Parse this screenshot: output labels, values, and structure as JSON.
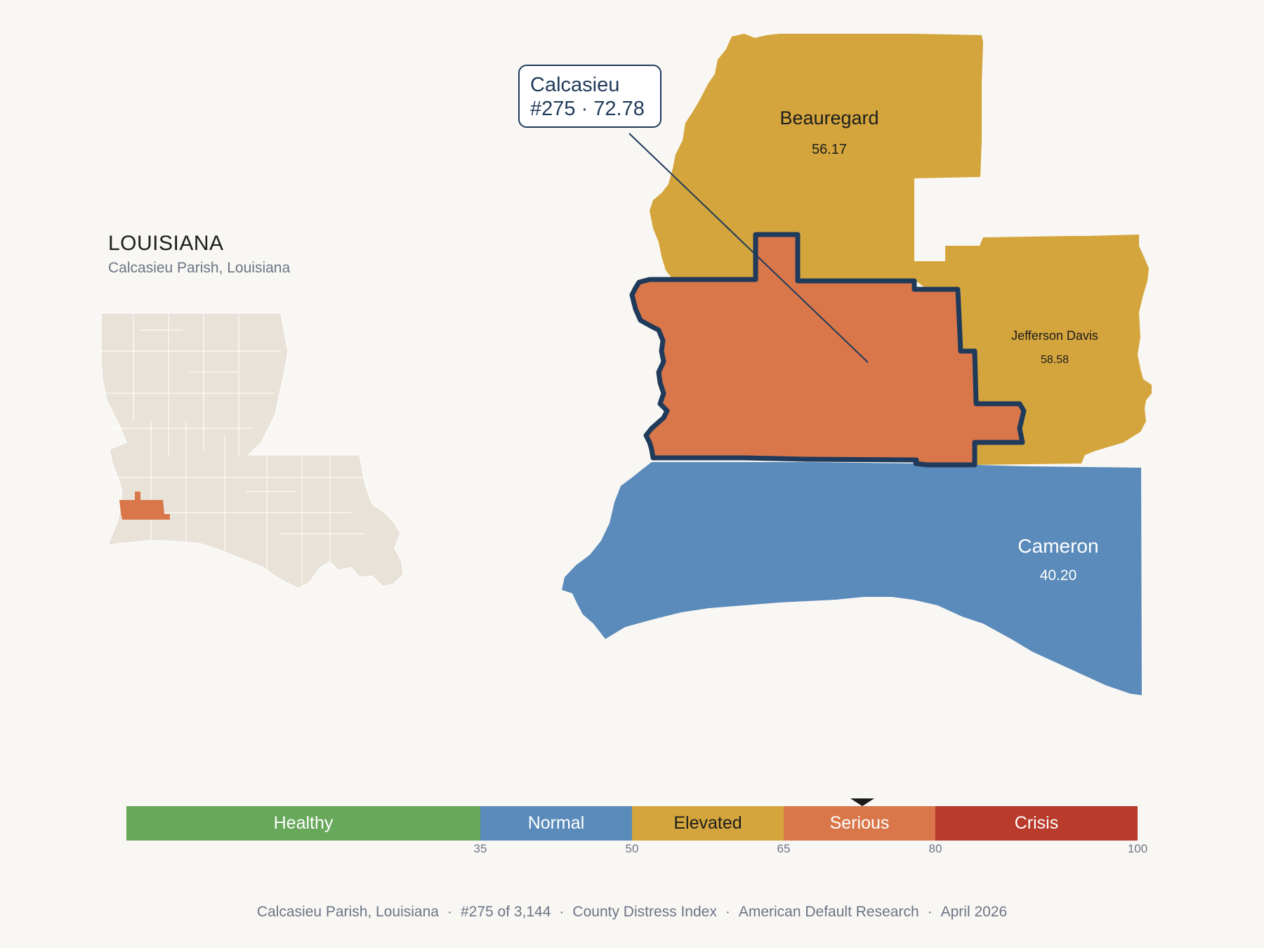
{
  "header": {
    "state_title": "LOUISIANA",
    "subtitle": "Calcasieu Parish, Louisiana"
  },
  "callout": {
    "name": "Calcasieu",
    "rank_score": "#275 · 72.78"
  },
  "parishes": [
    {
      "name": "Calcasieu",
      "score": "72.78",
      "category": "Serious",
      "selected": true
    },
    {
      "name": "Beauregard",
      "score": "56.17",
      "category": "Elevated"
    },
    {
      "name": "Jefferson Davis",
      "score": "58.58",
      "category": "Elevated"
    },
    {
      "name": "Cameron",
      "score": "40.20",
      "category": "Normal"
    }
  ],
  "legend": {
    "segments": [
      {
        "label": "Healthy",
        "from": 0,
        "to": 35,
        "color": "#67a85a"
      },
      {
        "label": "Normal",
        "from": 35,
        "to": 50,
        "color": "#5b8bba"
      },
      {
        "label": "Elevated",
        "from": 50,
        "to": 65,
        "color": "#d4a53c"
      },
      {
        "label": "Serious",
        "from": 65,
        "to": 80,
        "color": "#d9774a"
      },
      {
        "label": "Crisis",
        "from": 80,
        "to": 100,
        "color": "#b83b2b"
      }
    ],
    "ticks": [
      "35",
      "50",
      "65",
      "80",
      "100"
    ],
    "marker_value": 72.78
  },
  "colors": {
    "background": "#f9f7f4",
    "state_fill": "#e8e2d8",
    "selected_outline": "#1f3a5a"
  },
  "footer": {
    "place": "Calcasieu Parish, Louisiana",
    "rank": "#275 of 3,144",
    "index": "County Distress Index",
    "org": "American Default Research",
    "date": "April 2026"
  }
}
